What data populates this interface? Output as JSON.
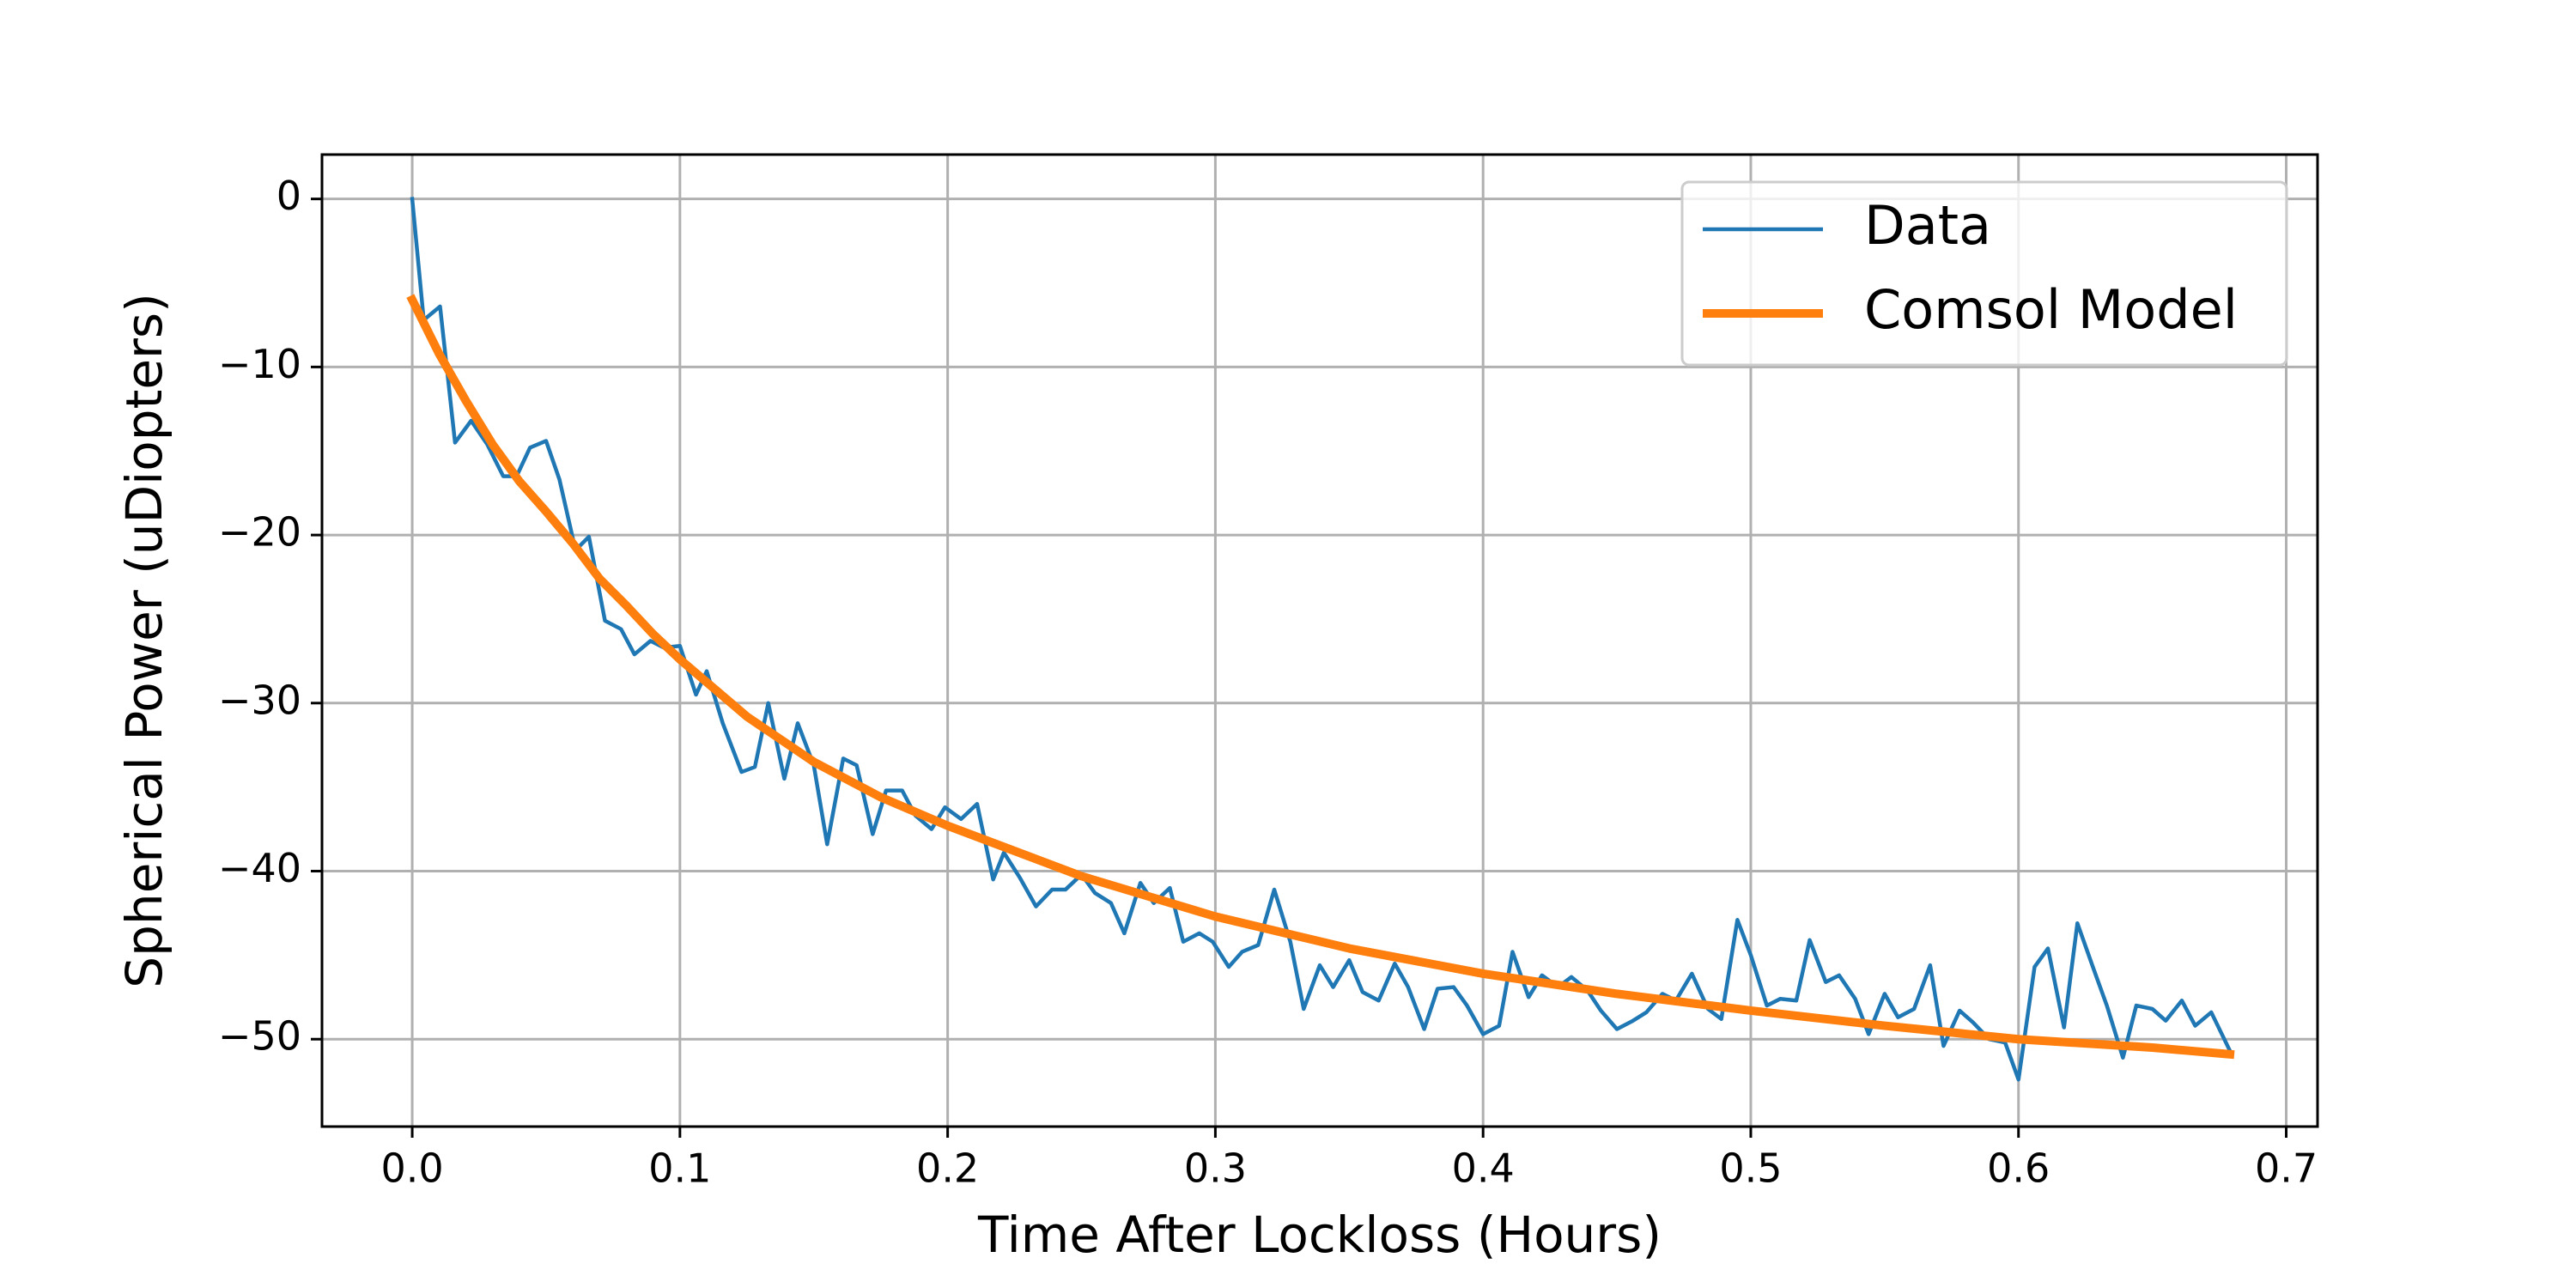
{
  "chart_data": {
    "type": "line",
    "xlabel": "Time After Lockloss (Hours)",
    "ylabel": "Spherical Power (uDiopters)",
    "xlim": [
      -0.0337,
      0.7117
    ],
    "ylim": [
      -55.2,
      2.64
    ],
    "xticks": [
      {
        "value": 0,
        "label": "0.0"
      },
      0.1,
      0.2,
      0.3,
      0.4,
      0.5,
      0.6,
      0.7
    ],
    "yticks": [
      {
        "value": -50,
        "label": "−50"
      },
      {
        "value": -40,
        "label": "−40"
      },
      {
        "value": -30,
        "label": "−30"
      },
      {
        "value": -20,
        "label": "−20"
      },
      {
        "value": -10,
        "label": "−10"
      },
      0
    ],
    "grid": true,
    "legend": "upper right",
    "series": [
      {
        "name": "Data",
        "color": "#1f77b4",
        "x": [
          0,
          0.0043,
          0.0104,
          0.016,
          0.022,
          0.028,
          0.034,
          0.039,
          0.044,
          0.05,
          0.055,
          0.061,
          0.066,
          0.072,
          0.078,
          0.083,
          0.089,
          0.094,
          0.1,
          0.106,
          0.11,
          0.116,
          0.123,
          0.128,
          0.133,
          0.139,
          0.144,
          0.15,
          0.155,
          0.161,
          0.166,
          0.172,
          0.177,
          0.183,
          0.188,
          0.194,
          0.199,
          0.205,
          0.211,
          0.217,
          0.221,
          0.227,
          0.233,
          0.239,
          0.244,
          0.25,
          0.255,
          0.261,
          0.266,
          0.272,
          0.277,
          0.283,
          0.288,
          0.294,
          0.299,
          0.305,
          0.31,
          0.316,
          0.322,
          0.328,
          0.333,
          0.339,
          0.344,
          0.35,
          0.355,
          0.361,
          0.367,
          0.372,
          0.378,
          0.383,
          0.389,
          0.394,
          0.4,
          0.406,
          0.411,
          0.417,
          0.422,
          0.428,
          0.433,
          0.439,
          0.444,
          0.45,
          0.456,
          0.461,
          0.467,
          0.472,
          0.478,
          0.484,
          0.489,
          0.495,
          0.5,
          0.506,
          0.511,
          0.517,
          0.522,
          0.528,
          0.533,
          0.539,
          0.544,
          0.55,
          0.555,
          0.561,
          0.567,
          0.572,
          0.578,
          0.583,
          0.589,
          0.595,
          0.6,
          0.606,
          0.611,
          0.617,
          0.622,
          0.628,
          0.633,
          0.639,
          0.644,
          0.65,
          0.655,
          0.661,
          0.666,
          0.672,
          0.679
        ],
        "values": [
          0,
          -7.2,
          -6.4,
          -14.5,
          -13.2,
          -14.6,
          -16.5,
          -16.5,
          -14.8,
          -14.4,
          -16.7,
          -20.9,
          -20.1,
          -25.1,
          -25.6,
          -27.1,
          -26.3,
          -26.7,
          -26.6,
          -29.5,
          -28.1,
          -31.2,
          -34.1,
          -33.8,
          -30.0,
          -34.5,
          -31.2,
          -33.7,
          -38.4,
          -33.3,
          -33.7,
          -37.8,
          -35.2,
          -35.2,
          -36.7,
          -37.5,
          -36.2,
          -36.9,
          -36.0,
          -40.5,
          -38.9,
          -40.4,
          -42.1,
          -41.1,
          -41.1,
          -40.2,
          -41.3,
          -41.9,
          -43.7,
          -40.7,
          -41.9,
          -41.0,
          -44.2,
          -43.7,
          -44.2,
          -45.7,
          -44.8,
          -44.4,
          -41.1,
          -44.2,
          -48.2,
          -45.6,
          -46.9,
          -45.3,
          -47.2,
          -47.7,
          -45.5,
          -46.9,
          -49.4,
          -47.0,
          -46.9,
          -48.0,
          -49.7,
          -49.2,
          -44.8,
          -47.5,
          -46.2,
          -46.9,
          -46.3,
          -47.1,
          -48.3,
          -49.4,
          -48.9,
          -48.4,
          -47.3,
          -47.7,
          -46.1,
          -48.2,
          -48.8,
          -42.9,
          -45.0,
          -48.0,
          -47.6,
          -47.7,
          -44.1,
          -46.6,
          -46.2,
          -47.6,
          -49.7,
          -47.3,
          -48.7,
          -48.2,
          -45.6,
          -50.4,
          -48.3,
          -49.0,
          -50.0,
          -50.2,
          -52.4,
          -45.7,
          -44.6,
          -49.3,
          -43.1,
          -45.8,
          -48.0,
          -51.1,
          -48.0,
          -48.2,
          -48.9,
          -47.7,
          -49.2,
          -48.4,
          -50.7
        ]
      },
      {
        "name": "Comsol Model",
        "color": "#ff7f0e",
        "x": [
          0,
          0.01,
          0.02,
          0.03,
          0.04,
          0.05,
          0.06,
          0.07,
          0.08,
          0.09,
          0.1,
          0.125,
          0.15,
          0.175,
          0.2,
          0.25,
          0.3,
          0.35,
          0.4,
          0.45,
          0.5,
          0.55,
          0.6,
          0.65,
          0.679
        ],
        "values": [
          -6.0,
          -9.2,
          -12.0,
          -14.6,
          -16.8,
          -18.6,
          -20.5,
          -22.6,
          -24.2,
          -25.9,
          -27.4,
          -30.8,
          -33.5,
          -35.6,
          -37.3,
          -40.3,
          -42.7,
          -44.6,
          -46.1,
          -47.3,
          -48.3,
          -49.2,
          -50.0,
          -50.5,
          -50.9
        ]
      }
    ]
  }
}
